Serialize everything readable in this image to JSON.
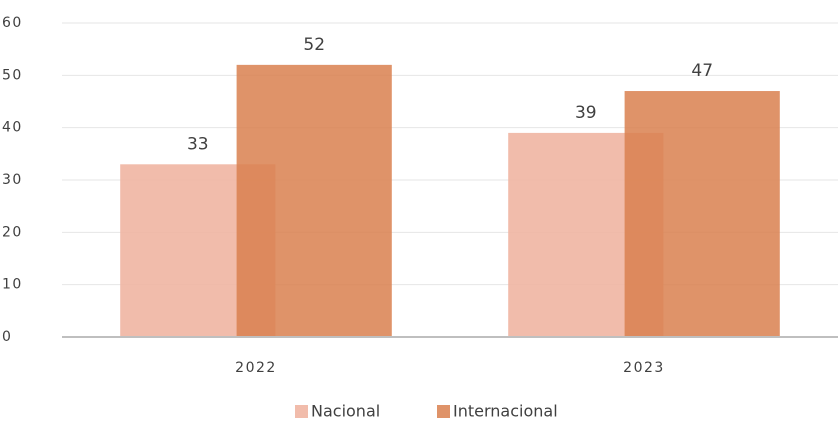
{
  "chart_data": {
    "type": "bar",
    "categories": [
      "2022",
      "2023"
    ],
    "series": [
      {
        "name": "Nacional",
        "color": "#f0b5a2",
        "values": [
          33,
          39
        ]
      },
      {
        "name": "Internacional",
        "color": "#d9804f",
        "values": [
          52,
          47
        ]
      }
    ],
    "ylim": [
      0,
      60
    ],
    "yticks": [
      0,
      10,
      20,
      30,
      40,
      50,
      60
    ],
    "grid": true,
    "legend": "bottom"
  }
}
